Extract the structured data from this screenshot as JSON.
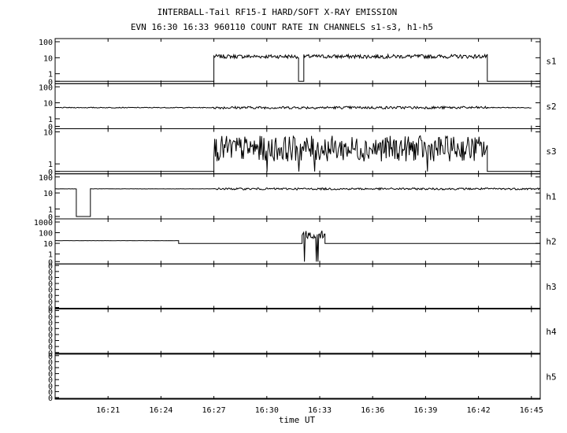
{
  "chart_data": {
    "type": "line",
    "title": "INTERBALL-Tail RF15-I HARD/SOFT X-RAY EMISSION",
    "subtitle": "EVN 16:30 16:33 960110  COUNT RATE IN CHANNELS s1-s3, h1-h5",
    "xlabel": "time UT",
    "x_range_minutes": [
      978,
      1005.5
    ],
    "x_ticks": [
      {
        "label": "16:21",
        "value": 981
      },
      {
        "label": "16:24",
        "value": 984
      },
      {
        "label": "16:27",
        "value": 987
      },
      {
        "label": "16:30",
        "value": 990
      },
      {
        "label": "16:33",
        "value": 993
      },
      {
        "label": "16:36",
        "value": 996
      },
      {
        "label": "16:39",
        "value": 999
      },
      {
        "label": "16:42",
        "value": 1002
      },
      {
        "label": "16:45",
        "value": 1005
      }
    ],
    "y_scale": "log",
    "panels": [
      {
        "name": "s1",
        "ymax_exp": 2,
        "y_tick_labels": [
          "100",
          "10",
          "1",
          "0"
        ],
        "level": 12,
        "noise": 0.12,
        "segments": [
          {
            "from": 978.0,
            "to": 987.0,
            "mode": "zero"
          },
          {
            "from": 987.0,
            "to": 991.8,
            "mode": "active"
          },
          {
            "from": 991.8,
            "to": 992.1,
            "mode": "zero"
          },
          {
            "from": 992.1,
            "to": 1002.5,
            "mode": "active"
          },
          {
            "from": 1002.5,
            "to": 1005.5,
            "mode": "zero"
          }
        ]
      },
      {
        "name": "s2",
        "ymax_exp": 2,
        "y_tick_labels": [
          "100",
          "10",
          "1",
          "0"
        ],
        "level": 5,
        "noise": 0.08,
        "segments": [
          {
            "from": 978.0,
            "to": 987.0,
            "mode": "quiet"
          },
          {
            "from": 987.0,
            "to": 1002.5,
            "mode": "active"
          },
          {
            "from": 1002.5,
            "to": 1005.0,
            "mode": "quiet"
          }
        ]
      },
      {
        "name": "s3",
        "ymax_exp": 1,
        "y_tick_labels": [
          "10",
          "1",
          "0"
        ],
        "level": 3,
        "noise": 0.4,
        "segments": [
          {
            "from": 978.0,
            "to": 987.0,
            "mode": "zero"
          },
          {
            "from": 987.0,
            "to": 1002.5,
            "mode": "spiky"
          },
          {
            "from": 1002.5,
            "to": 1005.5,
            "mode": "zero"
          }
        ],
        "dropouts": [
          990.0,
          991.8,
          992.7,
          999.1
        ]
      },
      {
        "name": "h1",
        "ymax_exp": 2,
        "y_tick_labels": [
          "100",
          "10",
          "1",
          "0"
        ],
        "level": 18,
        "noise": 0.06,
        "segments": [
          {
            "from": 978.0,
            "to": 979.2,
            "mode": "flat"
          },
          {
            "from": 979.2,
            "to": 980.0,
            "mode": "zero"
          },
          {
            "from": 980.0,
            "to": 987.0,
            "mode": "flat"
          },
          {
            "from": 987.0,
            "to": 1005.5,
            "mode": "active"
          }
        ]
      },
      {
        "name": "h2",
        "ymax_exp": 3,
        "y_tick_labels": [
          "1000",
          "100",
          "10",
          "1",
          "0"
        ],
        "level": 18,
        "noise": 0.05,
        "segments": [
          {
            "from": 978.0,
            "to": 985.0,
            "mode": "flat"
          },
          {
            "from": 985.0,
            "to": 992.0,
            "mode": "flat_low"
          },
          {
            "from": 992.0,
            "to": 993.3,
            "mode": "burst"
          },
          {
            "from": 993.3,
            "to": 1005.5,
            "mode": "flat_low"
          }
        ]
      },
      {
        "name": "h3",
        "empty": true
      },
      {
        "name": "h4",
        "empty": true
      },
      {
        "name": "h5",
        "empty": true
      }
    ]
  }
}
